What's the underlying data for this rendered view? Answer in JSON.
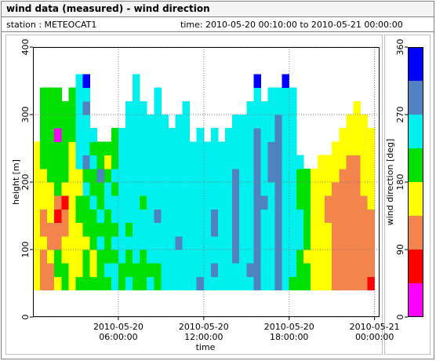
{
  "chart_data": {
    "type": "heatmap",
    "title": "wind data (measured) - wind direction",
    "subtitle_left": "station : METEOCAT1",
    "subtitle_right": "time: 2010-05-20 00:10:00 to 2010-05-21 00:00:00",
    "xlabel": "time",
    "ylabel": "height [m]",
    "xlim": [
      0,
      24.35
    ],
    "xticks": [
      {
        "value": 6,
        "label": [
          "2010-05-20",
          "06:00:00"
        ]
      },
      {
        "value": 12,
        "label": [
          "2010-05-20",
          "12:00:00"
        ]
      },
      {
        "value": 18,
        "label": [
          "2010-05-20",
          "18:00:00"
        ]
      },
      {
        "value": 24,
        "label": [
          "2010-05-21",
          "00:00:00"
        ]
      }
    ],
    "ylim": [
      0,
      400
    ],
    "yticks": [
      0,
      100,
      200,
      300,
      400
    ],
    "grid": true,
    "cell_width": 0.5,
    "cell_height": 20,
    "x": [
      0.25,
      0.75,
      1.25,
      1.75,
      2.25,
      2.75,
      3.25,
      3.75,
      4.25,
      4.75,
      5.25,
      5.75,
      6.25,
      6.75,
      7.25,
      7.75,
      8.25,
      8.75,
      9.25,
      9.75,
      10.25,
      10.75,
      11.25,
      11.75,
      12.25,
      12.75,
      13.25,
      13.75,
      14.25,
      14.75,
      15.25,
      15.75,
      16.25,
      16.75,
      17.25,
      17.75,
      18.25,
      18.75,
      19.25,
      19.75,
      20.25,
      20.75,
      21.25,
      21.75,
      22.25,
      22.75,
      23.25,
      23.75
    ],
    "y": [
      50,
      70,
      90,
      110,
      130,
      150,
      170,
      190,
      210,
      230,
      250,
      270,
      290,
      310,
      330,
      350
    ],
    "values": [
      [
        157,
        157,
        157,
        157,
        157,
        157,
        157,
        157,
        157,
        157,
        157,
        null,
        null,
        null,
        null,
        null
      ],
      [
        112,
        112,
        112,
        157,
        112,
        112,
        157,
        157,
        157,
        202,
        202,
        202,
        202,
        202,
        202,
        null
      ],
      [
        112,
        112,
        157,
        112,
        112,
        157,
        157,
        157,
        202,
        202,
        202,
        202,
        202,
        202,
        202,
        null
      ],
      [
        157,
        202,
        202,
        112,
        112,
        67,
        112,
        202,
        202,
        202,
        202,
        22,
        202,
        202,
        202,
        null
      ],
      [
        202,
        202,
        157,
        157,
        112,
        112,
        67,
        157,
        202,
        202,
        202,
        202,
        202,
        202,
        null,
        null
      ],
      [
        157,
        157,
        157,
        157,
        157,
        157,
        157,
        157,
        157,
        157,
        157,
        202,
        202,
        202,
        202,
        null
      ],
      [
        202,
        157,
        157,
        157,
        157,
        202,
        202,
        157,
        157,
        247,
        247,
        247,
        247,
        247,
        247,
        247
      ],
      [
        202,
        202,
        202,
        157,
        202,
        202,
        202,
        247,
        202,
        292,
        247,
        247,
        247,
        292,
        247,
        337
      ],
      [
        202,
        157,
        157,
        202,
        202,
        202,
        247,
        202,
        202,
        247,
        202,
        247,
        null,
        null,
        null,
        null
      ],
      [
        202,
        202,
        202,
        247,
        202,
        247,
        202,
        202,
        292,
        202,
        202,
        null,
        null,
        null,
        null,
        null
      ],
      [
        202,
        247,
        202,
        202,
        202,
        202,
        247,
        247,
        202,
        157,
        202,
        null,
        null,
        null,
        null,
        null
      ],
      [
        247,
        247,
        202,
        247,
        202,
        247,
        247,
        202,
        247,
        202,
        202,
        202,
        null,
        null,
        null,
        null
      ],
      [
        202,
        202,
        247,
        247,
        247,
        247,
        247,
        247,
        247,
        247,
        247,
        247,
        null,
        null,
        null,
        null
      ],
      [
        247,
        202,
        202,
        247,
        202,
        247,
        247,
        247,
        247,
        247,
        247,
        247,
        247,
        247,
        null,
        null
      ],
      [
        202,
        202,
        247,
        247,
        247,
        247,
        247,
        247,
        247,
        247,
        247,
        247,
        247,
        247,
        247,
        247
      ],
      [
        202,
        202,
        202,
        247,
        247,
        247,
        202,
        247,
        247,
        247,
        247,
        247,
        247,
        247,
        null,
        null
      ],
      [
        247,
        202,
        247,
        247,
        247,
        247,
        247,
        247,
        247,
        247,
        247,
        247,
        247,
        null,
        null,
        null
      ],
      [
        202,
        202,
        247,
        247,
        247,
        292,
        247,
        247,
        247,
        247,
        247,
        247,
        247,
        247,
        247,
        null
      ],
      [
        247,
        247,
        247,
        247,
        247,
        247,
        247,
        247,
        247,
        247,
        247,
        247,
        247,
        null,
        null,
        null
      ],
      [
        247,
        247,
        247,
        247,
        247,
        247,
        247,
        247,
        247,
        247,
        247,
        247,
        null,
        null,
        null,
        null
      ],
      [
        247,
        247,
        247,
        292,
        247,
        247,
        247,
        247,
        247,
        247,
        247,
        247,
        247,
        null,
        null,
        null
      ],
      [
        247,
        247,
        247,
        247,
        247,
        247,
        247,
        247,
        247,
        247,
        247,
        247,
        247,
        247,
        null,
        null
      ],
      [
        247,
        247,
        247,
        247,
        247,
        247,
        247,
        247,
        247,
        247,
        247,
        null,
        null,
        null,
        null,
        null
      ],
      [
        292,
        247,
        247,
        247,
        247,
        247,
        247,
        247,
        247,
        247,
        247,
        247,
        null,
        null,
        null,
        null
      ],
      [
        247,
        247,
        247,
        247,
        247,
        247,
        247,
        247,
        247,
        247,
        247,
        null,
        null,
        null,
        null,
        null
      ],
      [
        247,
        292,
        247,
        247,
        292,
        292,
        247,
        247,
        247,
        247,
        247,
        247,
        null,
        null,
        null,
        null
      ],
      [
        247,
        247,
        247,
        247,
        247,
        247,
        247,
        247,
        247,
        247,
        247,
        null,
        null,
        null,
        null,
        null
      ],
      [
        247,
        247,
        247,
        247,
        247,
        247,
        247,
        247,
        247,
        247,
        247,
        247,
        null,
        null,
        null,
        null
      ],
      [
        247,
        247,
        292,
        292,
        292,
        292,
        292,
        292,
        292,
        247,
        247,
        247,
        247,
        null,
        null,
        null
      ],
      [
        247,
        247,
        247,
        247,
        247,
        247,
        247,
        247,
        247,
        247,
        247,
        247,
        247,
        null,
        null,
        null
      ],
      [
        247,
        292,
        247,
        247,
        247,
        247,
        247,
        247,
        247,
        247,
        247,
        247,
        247,
        247,
        null,
        null
      ],
      [
        292,
        292,
        292,
        292,
        292,
        292,
        292,
        292,
        292,
        292,
        292,
        292,
        247,
        247,
        247,
        337
      ],
      [
        247,
        247,
        247,
        247,
        247,
        247,
        292,
        247,
        247,
        247,
        247,
        247,
        247,
        247,
        null,
        null
      ],
      [
        247,
        247,
        247,
        247,
        247,
        247,
        247,
        247,
        292,
        292,
        292,
        247,
        247,
        247,
        247,
        null
      ],
      [
        292,
        292,
        292,
        292,
        292,
        292,
        292,
        292,
        292,
        292,
        292,
        292,
        292,
        247,
        247,
        null
      ],
      [
        247,
        247,
        247,
        247,
        247,
        247,
        247,
        247,
        247,
        247,
        247,
        247,
        247,
        247,
        247,
        337
      ],
      [
        202,
        247,
        247,
        247,
        247,
        247,
        247,
        247,
        247,
        247,
        247,
        247,
        247,
        247,
        247,
        null
      ],
      [
        202,
        202,
        202,
        247,
        247,
        247,
        202,
        202,
        202,
        247,
        null,
        null,
        null,
        null,
        null,
        null
      ],
      [
        202,
        202,
        157,
        202,
        202,
        202,
        202,
        202,
        202,
        null,
        null,
        null,
        null,
        null,
        null,
        null
      ],
      [
        157,
        157,
        157,
        157,
        157,
        157,
        157,
        157,
        157,
        null,
        null,
        null,
        null,
        null,
        null,
        null
      ],
      [
        157,
        157,
        157,
        157,
        157,
        157,
        157,
        157,
        157,
        157,
        null,
        null,
        null,
        null,
        null,
        null
      ],
      [
        157,
        157,
        157,
        157,
        157,
        112,
        112,
        157,
        157,
        157,
        null,
        null,
        null,
        null,
        null,
        null
      ],
      [
        112,
        112,
        112,
        112,
        112,
        112,
        112,
        112,
        157,
        157,
        157,
        null,
        null,
        null,
        null,
        null
      ],
      [
        112,
        112,
        112,
        112,
        112,
        112,
        112,
        112,
        112,
        157,
        157,
        157,
        null,
        null,
        null,
        null
      ],
      [
        112,
        112,
        112,
        112,
        112,
        112,
        112,
        112,
        112,
        112,
        157,
        157,
        157,
        null,
        null,
        null
      ],
      [
        112,
        112,
        112,
        112,
        112,
        112,
        112,
        112,
        112,
        112,
        157,
        157,
        157,
        157,
        null,
        null
      ],
      [
        112,
        112,
        112,
        112,
        112,
        112,
        112,
        157,
        157,
        157,
        157,
        157,
        157,
        null,
        null,
        null
      ],
      [
        67,
        112,
        112,
        112,
        112,
        112,
        157,
        157,
        157,
        157,
        157,
        157,
        null,
        null,
        null,
        null
      ]
    ],
    "colorbar": {
      "label": "wind direction [deg]",
      "lim": [
        0,
        360
      ],
      "ticks": [
        0,
        90,
        180,
        270,
        360
      ],
      "bounds": [
        0,
        45,
        90,
        135,
        180,
        225,
        270,
        315,
        360
      ],
      "colors": [
        "#ff00ff",
        "#ff0000",
        "#f2844c",
        "#ffff00",
        "#00e000",
        "#00f0f0",
        "#4f82c0",
        "#0000ff"
      ]
    }
  }
}
